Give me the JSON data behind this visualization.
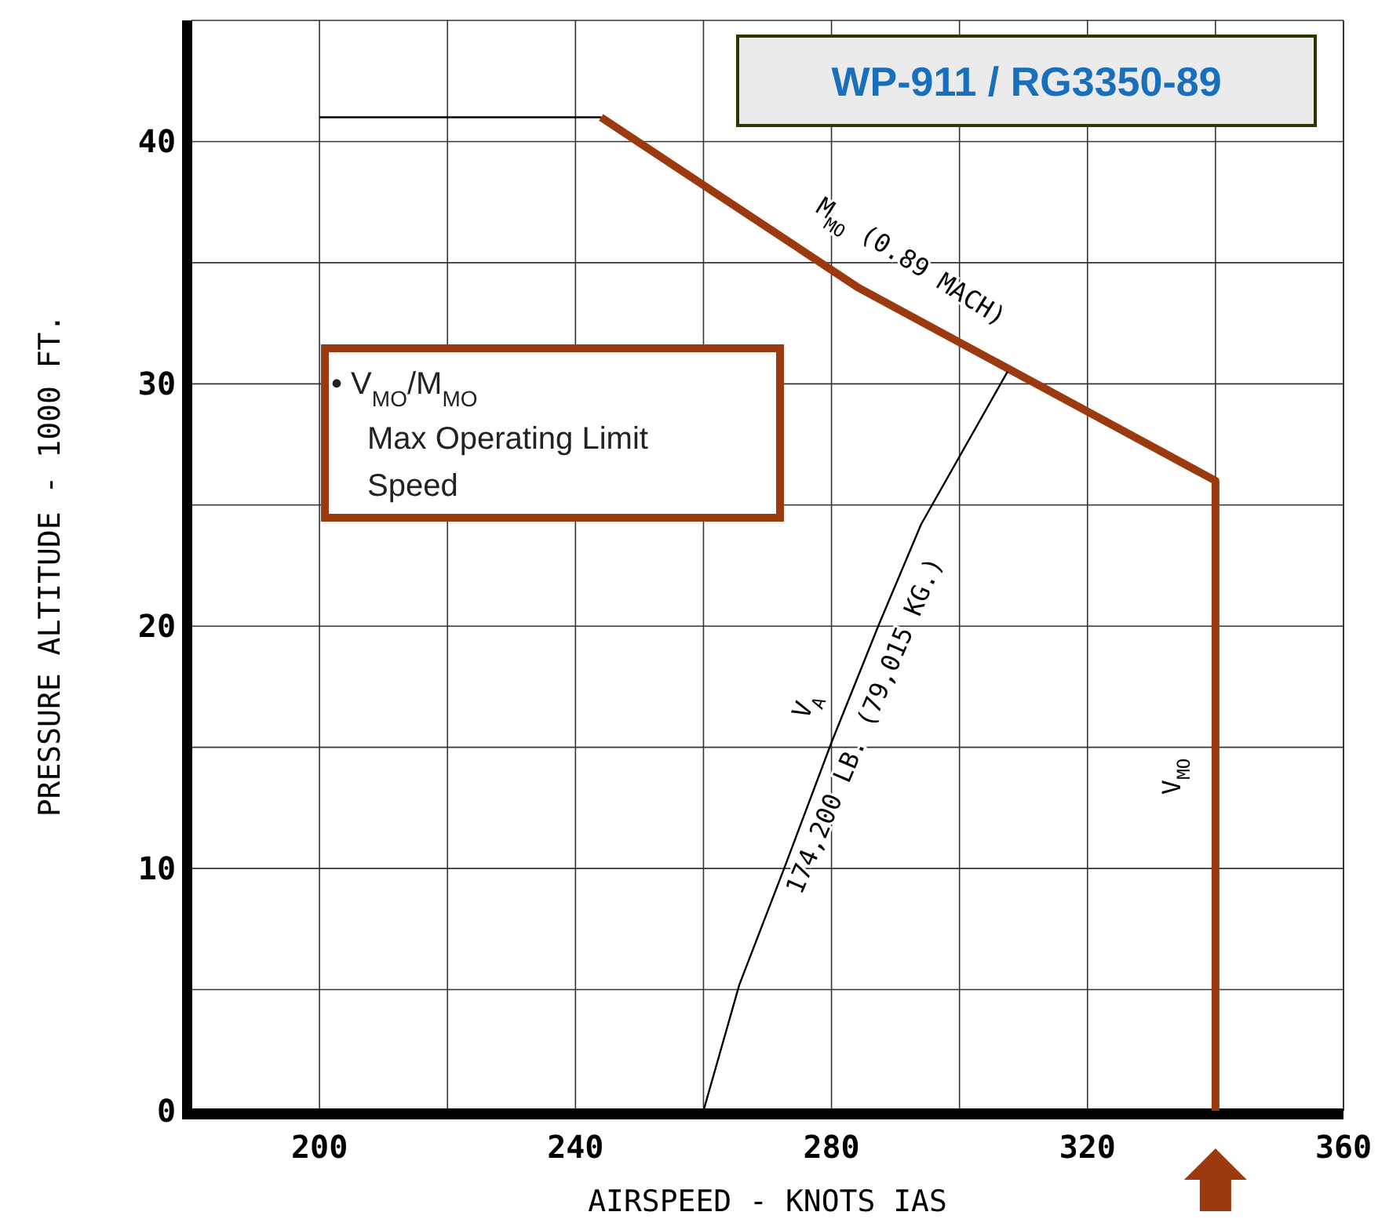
{
  "chart_data": {
    "type": "line",
    "title": "WP-911 / RG3350-89",
    "xlabel": "AIRSPEED - KNOTS IAS",
    "ylabel": "PRESSURE ALTITUDE - 1000 FT.",
    "xlim": [
      180,
      360
    ],
    "ylim": [
      0,
      45
    ],
    "xticks": [
      200,
      {
        "value": 220,
        "label": null
      },
      240,
      {
        "value": 260,
        "label": null
      },
      280,
      {
        "value": 300,
        "label": null
      },
      320,
      {
        "value": 340,
        "label": null
      },
      360
    ],
    "yticks": [
      0,
      {
        "value": 5,
        "label": null
      },
      10,
      {
        "value": 15,
        "label": null
      },
      20,
      {
        "value": 25,
        "label": null
      },
      30,
      {
        "value": 35,
        "label": null
      },
      40
    ],
    "grid": true,
    "marker": "none",
    "line_style": "solid",
    "series": [
      {
        "color": "#9b3a0e",
        "x": [
          244,
          284,
          340,
          340
        ],
        "values": [
          41,
          34,
          26,
          0
        ]
      },
      {
        "color": "#000000",
        "x": [
          200,
          244
        ],
        "values": [
          41,
          41
        ]
      },
      {
        "color": "#000000",
        "x": [
          260,
          265.6,
          272.6,
          280,
          287.3,
          294,
          307.5
        ],
        "values": [
          0,
          5.2,
          10,
          15.2,
          20,
          24.2,
          30.5
        ]
      }
    ],
    "annotations": [
      "M$_{MO}$ (0.89 MACH)",
      "V$_{A}$",
      "174,200 LB. (79,015 KG.)",
      "V$_{MO}$",
      "• V$_{MO}$/M$_{MO}$ Max Operating Limit Speed"
    ]
  }
}
